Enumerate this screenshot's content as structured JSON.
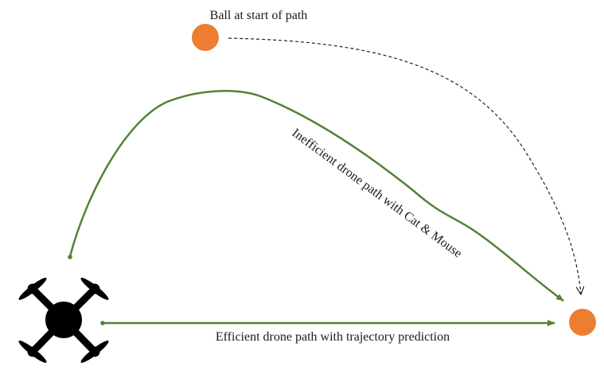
{
  "labels": {
    "ball_start": "Ball at start of path",
    "inefficient_path": "Inefficient drone path with Cat & Mouse",
    "efficient_path": "Efficient drone path with trajectory prediction"
  },
  "colors": {
    "ball": "#ED7D31",
    "path": "#548235",
    "drone": "#000000",
    "ball_trajectory": "#222222"
  },
  "icons": {
    "drone": "quadcopter-drone-icon"
  }
}
